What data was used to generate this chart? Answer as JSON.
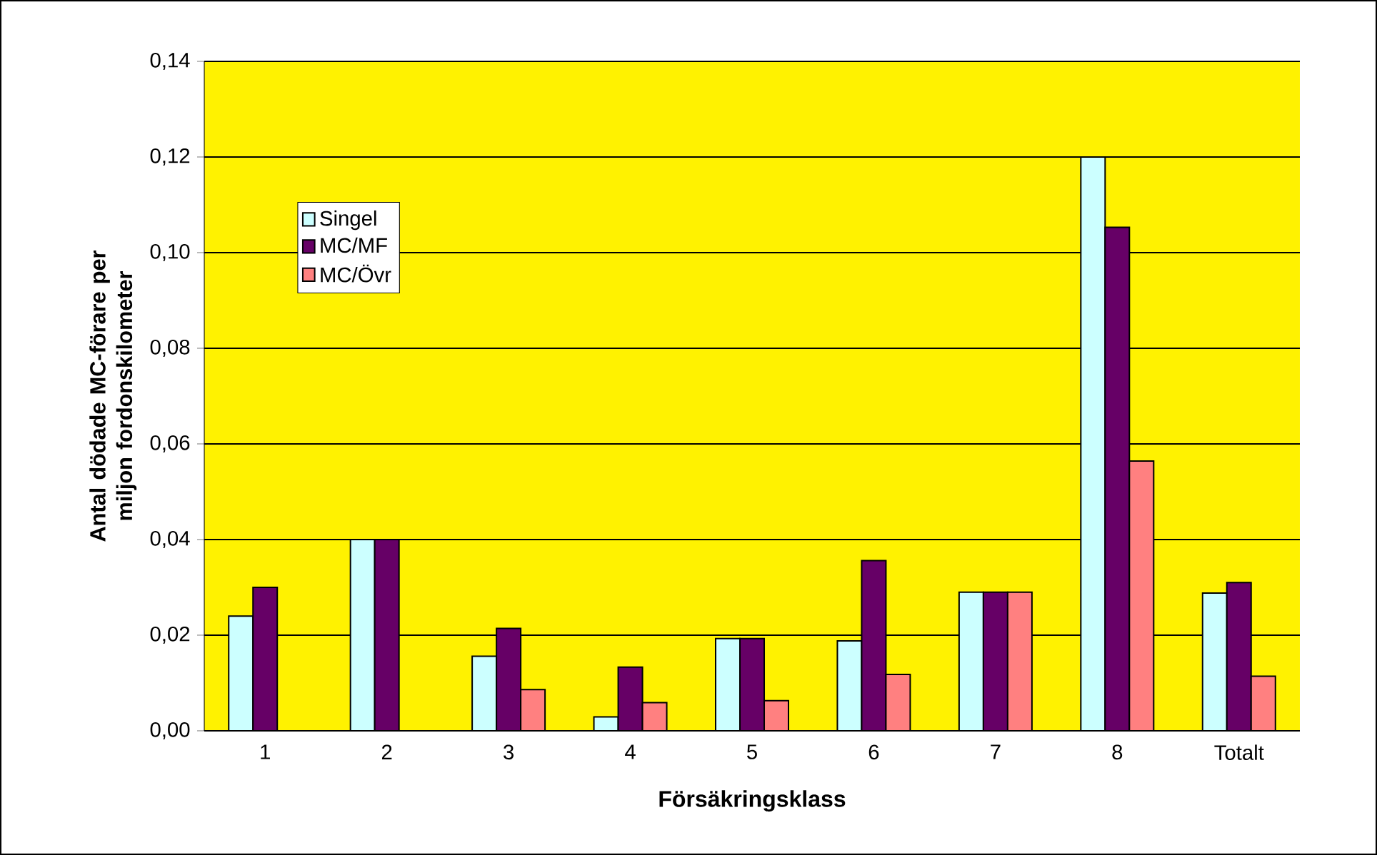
{
  "chart_data": {
    "type": "bar",
    "xlabel": "Försäkringsklass",
    "ylabel": "Antal dödade MC-förare per miljon fordonskilometer",
    "categories": [
      "1",
      "2",
      "3",
      "4",
      "5",
      "6",
      "7",
      "8",
      "Totalt"
    ],
    "series": [
      {
        "name": "Singel",
        "color": "#ccffff",
        "values": [
          0.024,
          0.04,
          0.0156,
          0.0029,
          0.0193,
          0.0188,
          0.029,
          0.12,
          0.0288
        ]
      },
      {
        "name": "MC/MF",
        "color": "#660066",
        "values": [
          0.03,
          0.04,
          0.0214,
          0.0133,
          0.0193,
          0.0356,
          0.029,
          0.1053,
          0.031
        ]
      },
      {
        "name": "MC/Övr",
        "color": "#ff8080",
        "values": [
          null,
          null,
          0.0086,
          0.0059,
          0.0063,
          0.0118,
          0.029,
          0.0564,
          0.0114
        ]
      }
    ],
    "ylim": [
      0,
      0.14
    ],
    "yticks": [
      {
        "value": 0,
        "label": "0,00"
      },
      {
        "value": 0.02,
        "label": "0,02"
      },
      {
        "value": 0.04,
        "label": "0,04"
      },
      {
        "value": 0.06,
        "label": "0,06"
      },
      {
        "value": 0.08,
        "label": "0,08"
      },
      {
        "value": 0.1,
        "label": "0,10"
      },
      {
        "value": 0.12,
        "label": "0,12"
      },
      {
        "value": 0.14,
        "label": "0,14"
      }
    ],
    "grid": "y",
    "legend": "top left"
  }
}
